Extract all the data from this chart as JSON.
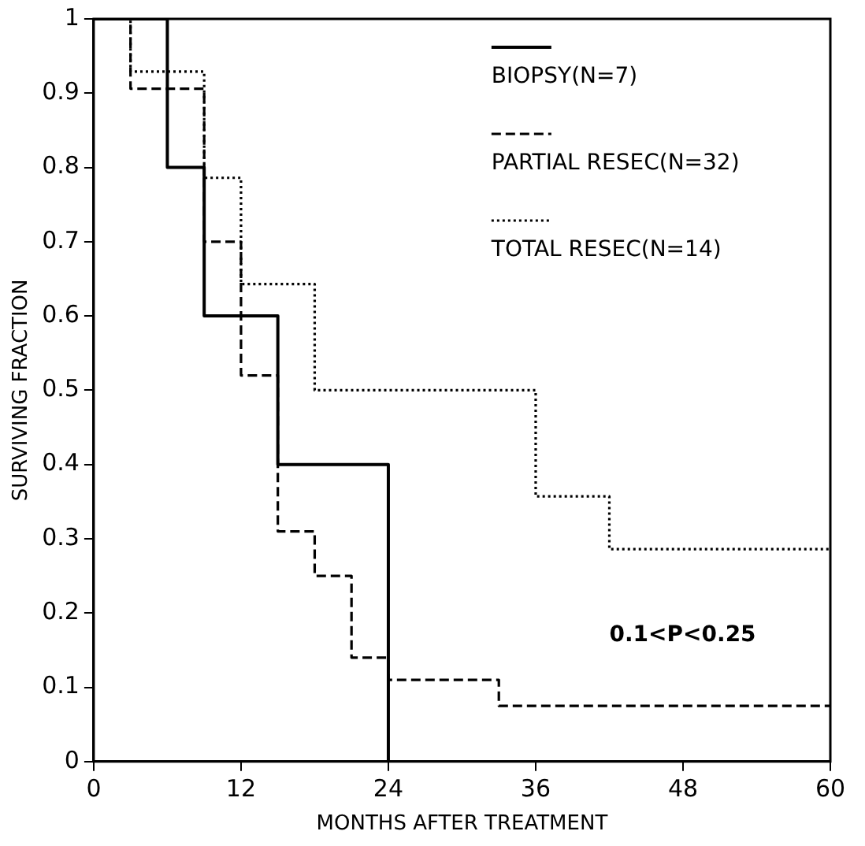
{
  "chart_data": {
    "type": "step",
    "xlabel": "MONTHS AFTER TREATMENT",
    "ylabel": "SURVIVING FRACTION",
    "xlim": [
      0,
      60
    ],
    "xticks": [
      0,
      12,
      24,
      36,
      48,
      60
    ],
    "ylim": [
      0,
      1
    ],
    "yticks": [
      0,
      0.1,
      0.2,
      0.3,
      0.4,
      0.5,
      0.6,
      0.7,
      0.8,
      0.9,
      1
    ],
    "grid": false,
    "legend": "top right",
    "marker": "none",
    "series": [
      {
        "name": "BIOPSY(N=7)",
        "color": "#000000",
        "line_style": "solid",
        "x": [
          0,
          6,
          9,
          15,
          24
        ],
        "values": [
          1,
          0.8,
          0.6,
          0.4,
          0
        ]
      },
      {
        "name": "PARTIAL RESEC(N=32)",
        "color": "#000000",
        "line_style": "dashed",
        "x": [
          0,
          3,
          9,
          12,
          15,
          18,
          21,
          24,
          33,
          60
        ],
        "values": [
          1,
          0.906,
          0.7,
          0.52,
          0.31,
          0.25,
          0.14,
          0.11,
          0.075,
          0.075
        ]
      },
      {
        "name": "TOTAL RESEC(N=14)",
        "color": "#000000",
        "line_style": "dotted",
        "x": [
          0,
          3,
          9,
          12,
          18,
          36,
          42,
          60
        ],
        "values": [
          1,
          0.929,
          0.786,
          0.643,
          0.5,
          0.357,
          0.286,
          0.286
        ]
      }
    ],
    "annotations": [
      "0.1<P<0.25"
    ]
  }
}
